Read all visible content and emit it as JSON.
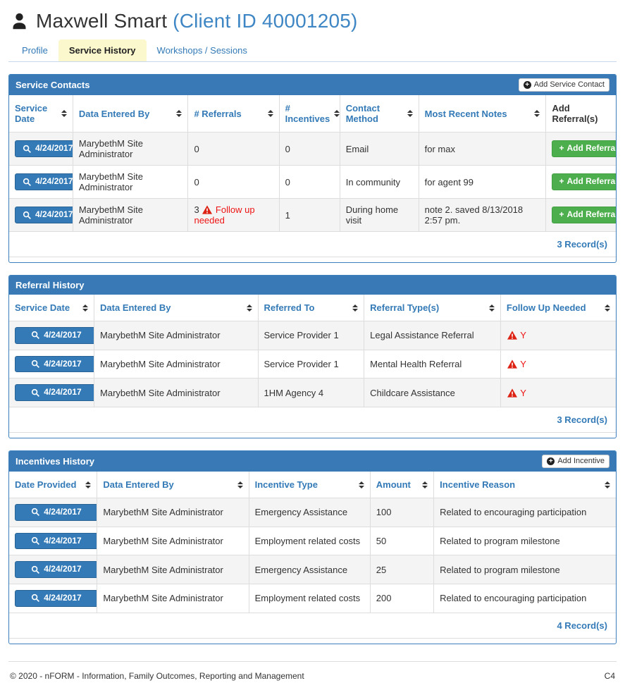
{
  "header": {
    "title": "Maxwell Smart",
    "client_id": "(Client ID 40001205)"
  },
  "tabs": [
    {
      "label": "Profile",
      "active": false
    },
    {
      "label": "Service History",
      "active": true
    },
    {
      "label": "Workshops / Sessions",
      "active": false
    }
  ],
  "colors": {
    "panel_header_blue": "#3879b6",
    "link_blue": "#337ab7",
    "button_green": "#4cae4c",
    "warning_red": "#dd2213",
    "active_tab_yellow": "#fbf8cd"
  },
  "panels": [
    {
      "id": "service_contacts",
      "title": "Service Contacts",
      "add_button": "Add Service Contact",
      "columns": [
        {
          "label": "Service Date",
          "sortable": true
        },
        {
          "label": "Data Entered By",
          "sortable": true
        },
        {
          "label": "# Referrals",
          "sortable": true
        },
        {
          "label": "# Incentives",
          "sortable": true
        },
        {
          "label": "Contact Method",
          "sortable": true
        },
        {
          "label": "Most Recent Notes",
          "sortable": true
        },
        {
          "label": "Add Referral(s)",
          "sortable": false
        }
      ],
      "rows": [
        [
          {
            "t": "date",
            "v": "4/24/2017"
          },
          {
            "t": "text",
            "v": "MarybethM Site Administrator"
          },
          {
            "t": "text",
            "v": "0"
          },
          {
            "t": "text",
            "v": "0"
          },
          {
            "t": "text",
            "v": "Email"
          },
          {
            "t": "text",
            "v": "for max"
          },
          {
            "t": "btn",
            "v": "Add Referral"
          }
        ],
        [
          {
            "t": "date",
            "v": "4/24/2017"
          },
          {
            "t": "text",
            "v": "MarybethM Site Administrator"
          },
          {
            "t": "text",
            "v": "0"
          },
          {
            "t": "text",
            "v": "0"
          },
          {
            "t": "text",
            "v": "In community"
          },
          {
            "t": "text",
            "v": "for agent 99"
          },
          {
            "t": "btn",
            "v": "Add Referral"
          }
        ],
        [
          {
            "t": "date",
            "v": "4/24/2017"
          },
          {
            "t": "text",
            "v": "MarybethM Site Administrator"
          },
          {
            "t": "warn",
            "pre": "3",
            "v": "Follow up needed"
          },
          {
            "t": "text",
            "v": "1"
          },
          {
            "t": "text",
            "v": "During home visit"
          },
          {
            "t": "text",
            "v": "note 2. saved 8/13/2018 2:57 pm."
          },
          {
            "t": "btn",
            "v": "Add Referral"
          }
        ]
      ],
      "record_count": "3 Record(s)"
    },
    {
      "id": "referral_history",
      "title": "Referral History",
      "add_button": null,
      "columns": [
        {
          "label": "Service Date",
          "sortable": true
        },
        {
          "label": "Data Entered By",
          "sortable": true
        },
        {
          "label": "Referred To",
          "sortable": true
        },
        {
          "label": "Referral Type(s)",
          "sortable": true
        },
        {
          "label": "Follow Up Needed",
          "sortable": true
        }
      ],
      "rows": [
        [
          {
            "t": "date",
            "v": "4/24/2017"
          },
          {
            "t": "text",
            "v": "MarybethM Site Administrator"
          },
          {
            "t": "text",
            "v": "Service Provider 1"
          },
          {
            "t": "text",
            "v": "Legal Assistance Referral"
          },
          {
            "t": "warnY",
            "v": "Y"
          }
        ],
        [
          {
            "t": "date",
            "v": "4/24/2017"
          },
          {
            "t": "text",
            "v": "MarybethM Site Administrator"
          },
          {
            "t": "text",
            "v": "Service Provider 1"
          },
          {
            "t": "text",
            "v": "Mental Health Referral"
          },
          {
            "t": "warnY",
            "v": "Y"
          }
        ],
        [
          {
            "t": "date",
            "v": "4/24/2017"
          },
          {
            "t": "text",
            "v": "MarybethM Site Administrator"
          },
          {
            "t": "text",
            "v": "1HM Agency 4"
          },
          {
            "t": "text",
            "v": "Childcare Assistance"
          },
          {
            "t": "warnY",
            "v": "Y"
          }
        ]
      ],
      "record_count": "3 Record(s)"
    },
    {
      "id": "incentives_history",
      "title": "Incentives History",
      "add_button": "Add Incentive",
      "columns": [
        {
          "label": "Date Provided",
          "sortable": true
        },
        {
          "label": "Data Entered By",
          "sortable": true
        },
        {
          "label": "Incentive Type",
          "sortable": true
        },
        {
          "label": "Amount",
          "sortable": true
        },
        {
          "label": "Incentive Reason",
          "sortable": true
        }
      ],
      "rows": [
        [
          {
            "t": "date",
            "v": "4/24/2017"
          },
          {
            "t": "text",
            "v": "MarybethM Site Administrator"
          },
          {
            "t": "text",
            "v": "Emergency Assistance"
          },
          {
            "t": "text",
            "v": "100"
          },
          {
            "t": "text",
            "v": "Related to encouraging participation"
          }
        ],
        [
          {
            "t": "date",
            "v": "4/24/2017"
          },
          {
            "t": "text",
            "v": "MarybethM Site Administrator"
          },
          {
            "t": "text",
            "v": "Employment related costs"
          },
          {
            "t": "text",
            "v": "50"
          },
          {
            "t": "text",
            "v": "Related to program milestone"
          }
        ],
        [
          {
            "t": "date",
            "v": "4/24/2017"
          },
          {
            "t": "text",
            "v": "MarybethM Site Administrator"
          },
          {
            "t": "text",
            "v": "Emergency Assistance"
          },
          {
            "t": "text",
            "v": "25"
          },
          {
            "t": "text",
            "v": "Related to program milestone"
          }
        ],
        [
          {
            "t": "date",
            "v": "4/24/2017"
          },
          {
            "t": "text",
            "v": "MarybethM Site Administrator"
          },
          {
            "t": "text",
            "v": "Employment related costs"
          },
          {
            "t": "text",
            "v": "200"
          },
          {
            "t": "text",
            "v": "Related to encouraging participation"
          }
        ]
      ],
      "record_count": "4 Record(s)"
    }
  ],
  "footer": {
    "copyright": "© 2020 - nFORM - Information, Family Outcomes, Reporting and Management",
    "code": "C4"
  }
}
